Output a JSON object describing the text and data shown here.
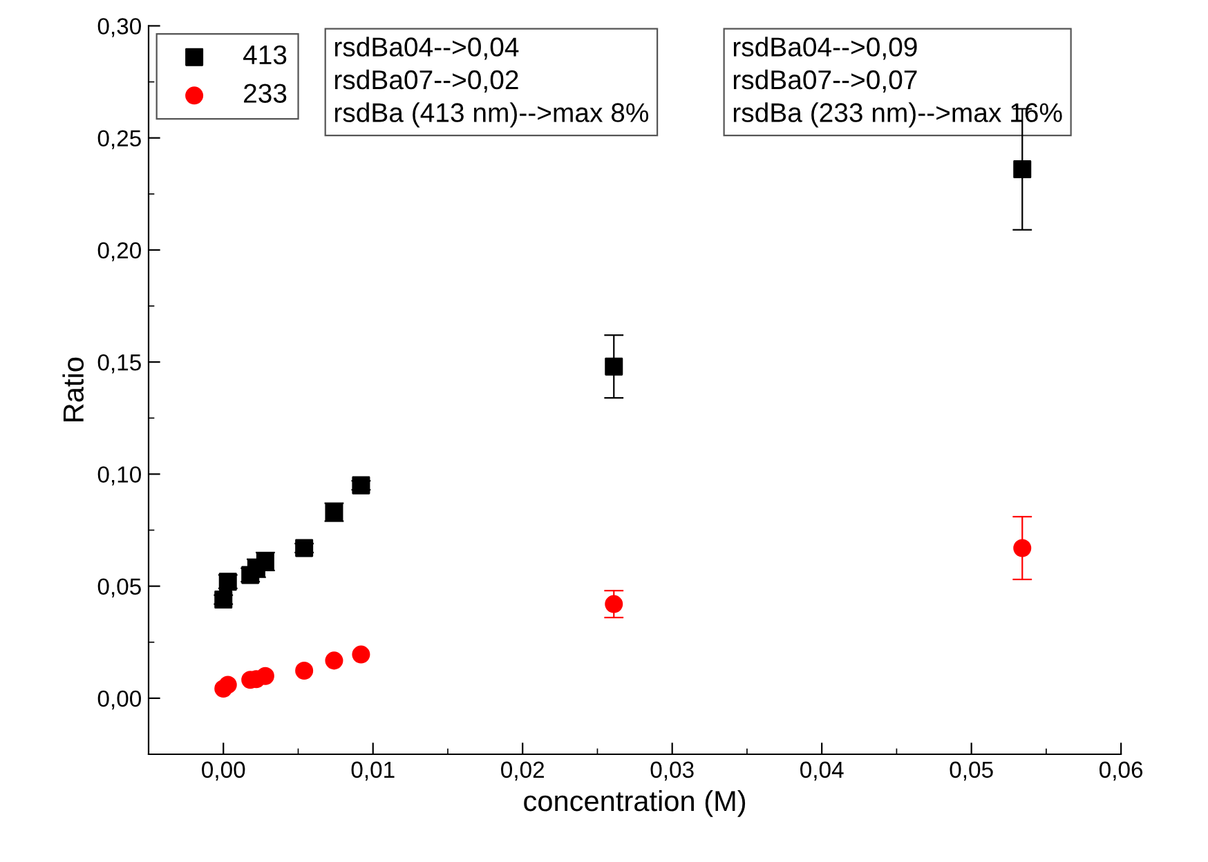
{
  "chart_data": {
    "type": "scatter",
    "xlabel": "concentration (M)",
    "ylabel": "Ratio",
    "xlim": [
      -0.005,
      0.06
    ],
    "ylim": [
      -0.025,
      0.3
    ],
    "xticks": [
      {
        "value": 0,
        "label": "0,00"
      },
      {
        "value": 0.01,
        "label": "0,01"
      },
      {
        "value": 0.02,
        "label": "0,02"
      },
      {
        "value": 0.03,
        "label": "0,03"
      },
      {
        "value": 0.04,
        "label": "0,04"
      },
      {
        "value": 0.05,
        "label": "0,05"
      },
      {
        "value": 0.06,
        "label": "0,06"
      }
    ],
    "yticks": [
      {
        "value": 0,
        "label": "0,00"
      },
      {
        "value": 0.05,
        "label": "0,05"
      },
      {
        "value": 0.1,
        "label": "0,10"
      },
      {
        "value": 0.15,
        "label": "0,15"
      },
      {
        "value": 0.2,
        "label": "0,20"
      },
      {
        "value": 0.25,
        "label": "0,25"
      },
      {
        "value": 0.3,
        "label": "0,30"
      }
    ],
    "legend": "top left",
    "grid": false,
    "annotations": [
      "rsdBa04-->0,04\nrsdBa07-->0,02\nrsdBa (413 nm)-->max 8%",
      "rsdBa04-->0,09\nrsdBa07-->0,07\nrsdBa (233 nm)-->max 16%"
    ],
    "series": [
      {
        "name": "413",
        "color": "#000000",
        "marker": "square",
        "x": [
          0.0,
          0.0003,
          0.0018,
          0.0022,
          0.0028,
          0.0054,
          0.0074,
          0.0092,
          0.0261,
          0.0534
        ],
        "values": [
          0.044,
          0.052,
          0.055,
          0.058,
          0.061,
          0.067,
          0.083,
          0.095,
          0.148,
          0.236
        ],
        "errors": [
          0.002,
          0.003,
          0.003,
          0.004,
          0.004,
          0.002,
          0.004,
          0.002,
          0.014,
          0.027
        ]
      },
      {
        "name": "233",
        "color": "#ff0000",
        "marker": "circle",
        "x": [
          0.0,
          0.0003,
          0.0018,
          0.0022,
          0.0028,
          0.0054,
          0.0074,
          0.0092,
          0.0261,
          0.0534
        ],
        "values": [
          0.0043,
          0.006,
          0.0082,
          0.0085,
          0.0099,
          0.0123,
          0.0168,
          0.0195,
          0.042,
          0.067
        ],
        "errors": [
          null,
          null,
          null,
          null,
          null,
          null,
          null,
          null,
          0.006,
          0.014
        ]
      }
    ]
  }
}
